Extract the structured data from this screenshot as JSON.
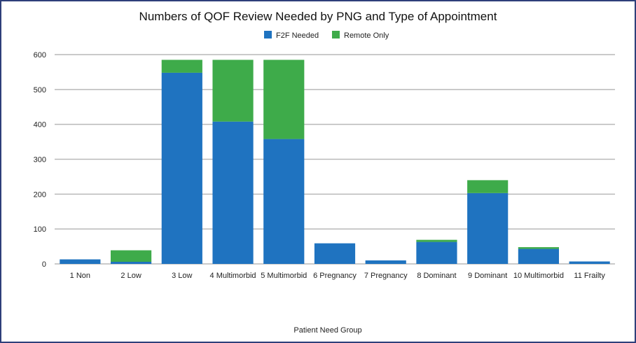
{
  "colors": {
    "f2f": "#1f73c0",
    "remote": "#3eab4a",
    "grid": "#b9b9b9",
    "border": "#2e3f7a"
  },
  "chart_data": {
    "type": "bar",
    "stacked": true,
    "title": "Numbers of QOF Review Needed by PNG and Type of Appointment",
    "xlabel": "Patient Need Group",
    "ylabel": "",
    "ylim": [
      0,
      600
    ],
    "yticks": [
      0,
      100,
      200,
      300,
      400,
      500,
      600
    ],
    "grid": true,
    "legend_position": "top-center",
    "categories": [
      "1 Non",
      "2 Low",
      "3 Low",
      "4 Multimorbid",
      "5 Multimorbid",
      "6 Pregnancy",
      "7 Pregnancy",
      "8 Dominant",
      "9 Dominant",
      "10 Multimorbid",
      "11 Frailty"
    ],
    "series": [
      {
        "name": "F2F Needed",
        "color": "#1f73c0",
        "values": [
          13,
          6,
          548,
          408,
          358,
          59,
          10,
          63,
          203,
          43,
          7
        ]
      },
      {
        "name": "Remote Only",
        "color": "#3eab4a",
        "values": [
          0,
          33,
          37,
          177,
          227,
          0,
          0,
          6,
          37,
          5,
          0
        ]
      }
    ]
  }
}
